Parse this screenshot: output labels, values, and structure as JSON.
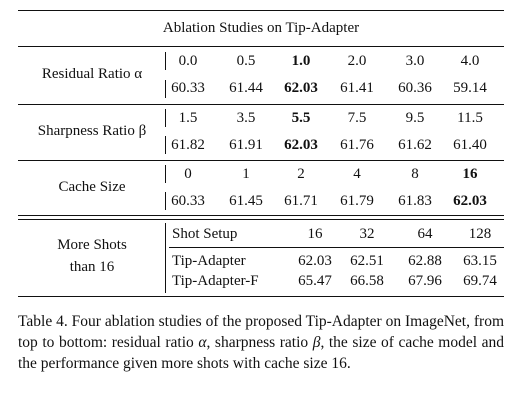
{
  "table": {
    "title": "Ablation Studies on Tip-Adapter",
    "residual": {
      "label": "Residual Ratio α",
      "settings": [
        "0.0",
        "0.5",
        "1.0",
        "2.0",
        "3.0",
        "4.0"
      ],
      "scores": [
        "60.33",
        "61.44",
        "62.03",
        "61.41",
        "60.36",
        "59.14"
      ],
      "best_index": 2
    },
    "sharpness": {
      "label": "Sharpness Ratio β",
      "settings": [
        "1.5",
        "3.5",
        "5.5",
        "7.5",
        "9.5",
        "11.5"
      ],
      "scores": [
        "61.82",
        "61.91",
        "62.03",
        "61.76",
        "61.62",
        "61.40"
      ],
      "best_index": 2
    },
    "cache": {
      "label": "Cache Size",
      "settings": [
        "0",
        "1",
        "2",
        "4",
        "8",
        "16"
      ],
      "scores": [
        "60.33",
        "61.45",
        "61.71",
        "61.79",
        "61.83",
        "62.03"
      ],
      "best_index": 5
    },
    "more_shots": {
      "label_line1": "More Shots",
      "label_line2": "than 16",
      "header": "Shot Setup",
      "shots": [
        "16",
        "32",
        "64",
        "128"
      ],
      "rows": [
        {
          "name": "Tip-Adapter",
          "values": [
            "62.03",
            "62.51",
            "62.88",
            "63.15"
          ]
        },
        {
          "name": "Tip-Adapter-F",
          "values": [
            "65.47",
            "66.58",
            "67.96",
            "69.74"
          ]
        }
      ]
    }
  },
  "caption": {
    "lead": "Table 4.",
    "part1": "Four ablation studies of the proposed Tip-Adapter on ImageNet, from top to bottom: residual ratio ",
    "alpha": "α",
    "part2": ", sharpness ratio ",
    "beta": "β",
    "part3": ", the size of cache model and the performance given more shots with cache size 16."
  }
}
